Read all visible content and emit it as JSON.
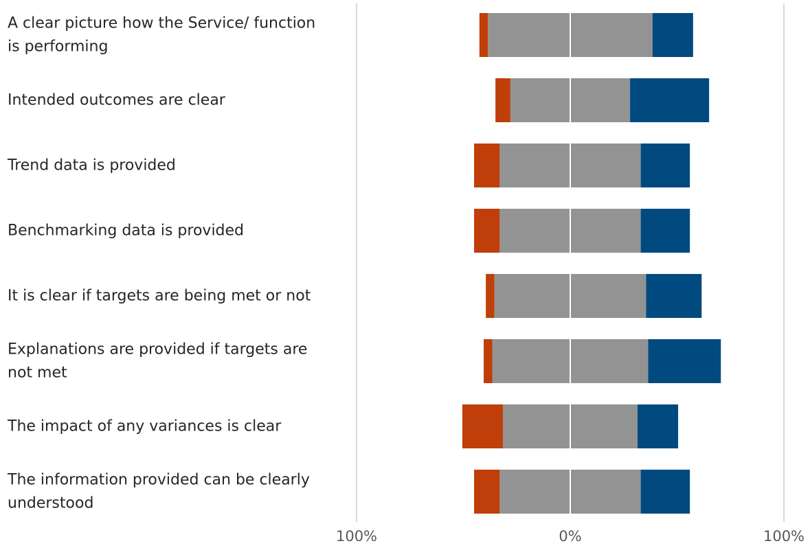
{
  "chart_data": {
    "type": "bar",
    "orientation": "horizontal",
    "stacked": "diverging",
    "title": "",
    "xlabel": "",
    "ylabel": "",
    "xlim": [
      -100,
      100
    ],
    "x_ticks": [
      {
        "value": -100,
        "label": "100%"
      },
      {
        "value": 0,
        "label": "0%"
      },
      {
        "value": 100,
        "label": "100%"
      }
    ],
    "categories": [
      [
        "A clear picture how the Service/ function",
        "is performing"
      ],
      [
        "Intended outcomes are clear"
      ],
      [
        "Trend data is provided"
      ],
      [
        "Benchmarking data is provided"
      ],
      [
        "It is clear if targets are being met or not"
      ],
      [
        "Explanations are provided if targets are",
        "not met"
      ],
      [
        "The impact of any variances is clear"
      ],
      [
        "The information provided can be clearly",
        "understood"
      ]
    ],
    "series": [
      {
        "color": "#bf3e0a",
        "side": "negative",
        "values": [
          4,
          7,
          12,
          12,
          4,
          4,
          19,
          12
        ]
      },
      {
        "color": "#939393",
        "side": "neutral",
        "values": [
          77,
          56,
          66,
          66,
          71,
          73,
          63,
          66
        ]
      },
      {
        "color": "#004a80",
        "side": "positive",
        "values": [
          19,
          37,
          23,
          23,
          26,
          34,
          19,
          23
        ]
      }
    ],
    "legend": "none",
    "grid": true,
    "colors": {
      "gridline": "#d9d9d9",
      "zero_line": "#ffffff"
    }
  }
}
